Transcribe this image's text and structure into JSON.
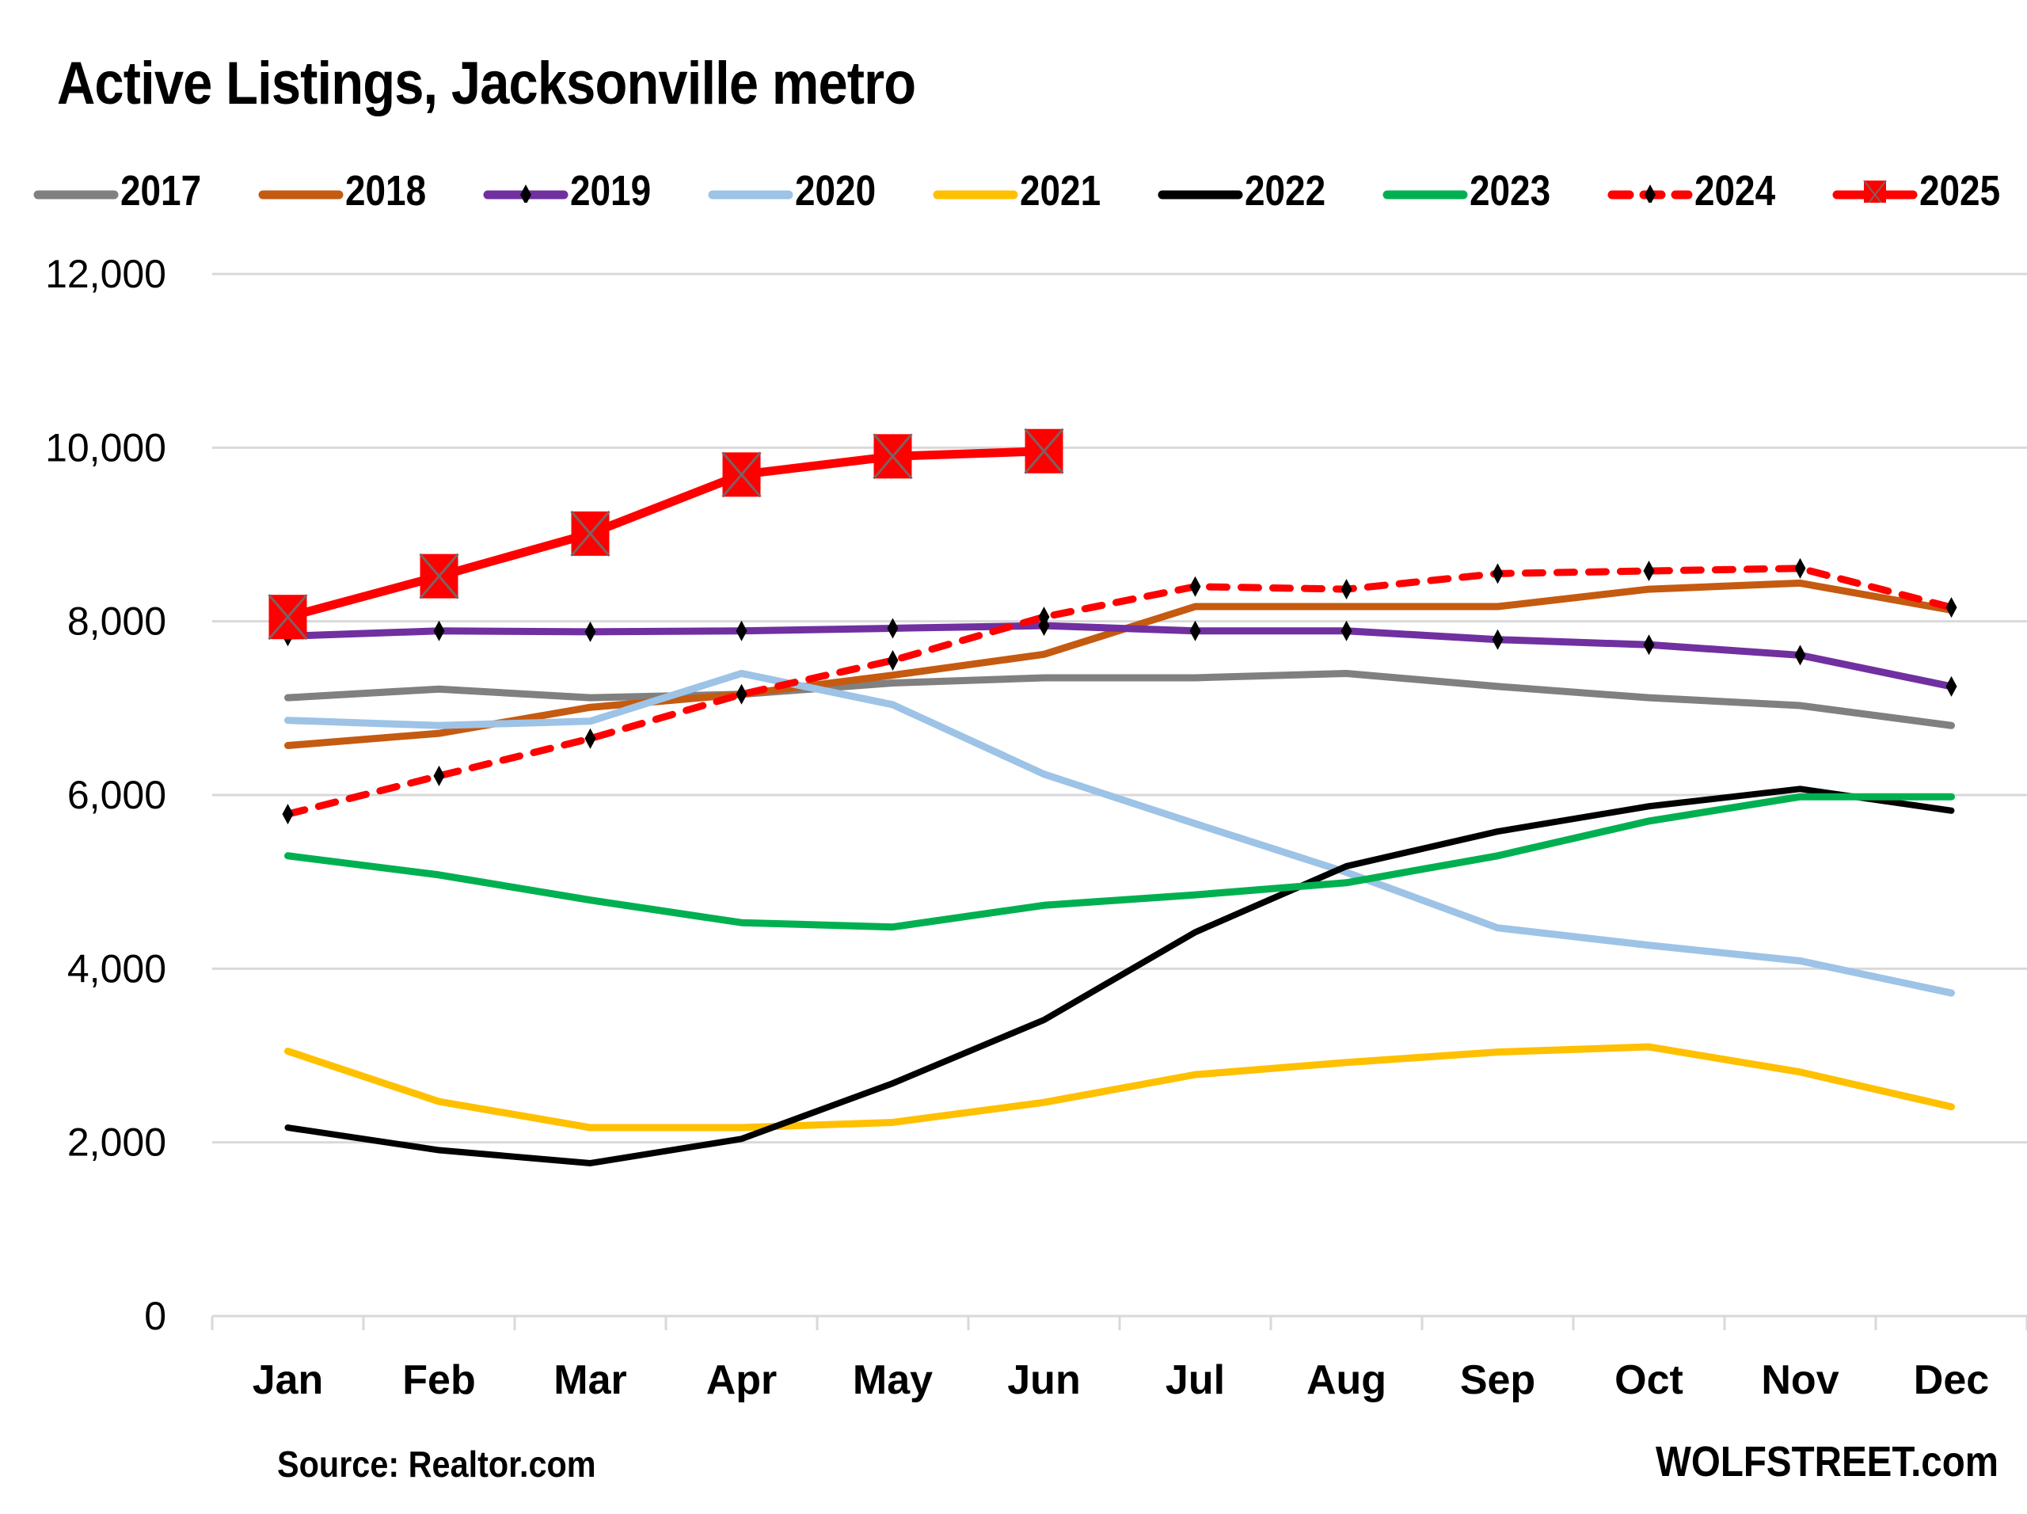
{
  "chart_data": {
    "type": "line",
    "title": "Active Listings, Jacksonville metro",
    "xlabel": "",
    "ylabel": "",
    "ylim": [
      0,
      12000
    ],
    "yticks": [
      0,
      2000,
      4000,
      6000,
      8000,
      10000,
      12000
    ],
    "ytick_labels": [
      "0",
      "2,000",
      "4,000",
      "6,000",
      "8,000",
      "10,000",
      "12,000"
    ],
    "grid": true,
    "legend_position": "top",
    "categories": [
      "Jan",
      "Feb",
      "Mar",
      "Apr",
      "May",
      "Jun",
      "Jul",
      "Aug",
      "Sep",
      "Oct",
      "Nov",
      "Dec"
    ],
    "series": [
      {
        "name": "2017",
        "color": "#808080",
        "style": "solid",
        "marker": "none",
        "values": [
          7120,
          7220,
          7120,
          7160,
          7290,
          7350,
          7350,
          7400,
          7250,
          7120,
          7030,
          6800
        ]
      },
      {
        "name": "2018",
        "color": "#C55A11",
        "style": "solid",
        "marker": "none",
        "values": [
          6570,
          6710,
          7010,
          7160,
          7380,
          7620,
          8170,
          8170,
          8170,
          8370,
          8440,
          8130
        ]
      },
      {
        "name": "2019",
        "color": "#7030A0",
        "style": "solid",
        "marker": "diamond",
        "values": [
          7830,
          7890,
          7880,
          7890,
          7920,
          7950,
          7890,
          7890,
          7790,
          7730,
          7610,
          7250
        ]
      },
      {
        "name": "2020",
        "color": "#9DC3E6",
        "style": "solid",
        "marker": "none",
        "values": [
          6860,
          6800,
          6850,
          7400,
          7040,
          6240,
          5670,
          5110,
          4470,
          4270,
          4090,
          3720
        ]
      },
      {
        "name": "2021",
        "color": "#FFC000",
        "style": "solid",
        "marker": "none",
        "values": [
          3050,
          2470,
          2170,
          2170,
          2230,
          2460,
          2780,
          2920,
          3040,
          3100,
          2810,
          2410
        ]
      },
      {
        "name": "2022",
        "color": "#000000",
        "style": "solid",
        "marker": "none",
        "values": [
          2170,
          1910,
          1760,
          2040,
          2680,
          3410,
          4420,
          5180,
          5580,
          5870,
          6070,
          5820
        ]
      },
      {
        "name": "2023",
        "color": "#00B050",
        "style": "solid",
        "marker": "none",
        "values": [
          5300,
          5080,
          4790,
          4530,
          4480,
          4730,
          4850,
          4990,
          5300,
          5700,
          5980,
          5980
        ]
      },
      {
        "name": "2024",
        "color": "#FF0000",
        "style": "dotted",
        "marker": "diamond",
        "values": [
          5780,
          6220,
          6650,
          7160,
          7550,
          8050,
          8400,
          8370,
          8550,
          8580,
          8610,
          8160
        ]
      },
      {
        "name": "2025",
        "color": "#FF0000",
        "style": "solid",
        "marker": "square-x",
        "values": [
          8050,
          8520,
          9010,
          9690,
          9900,
          9960,
          null,
          null,
          null,
          null,
          null,
          null
        ]
      }
    ]
  },
  "footer": {
    "source": "Source: Realtor.com",
    "brand": "WOLFSTREET.com"
  }
}
